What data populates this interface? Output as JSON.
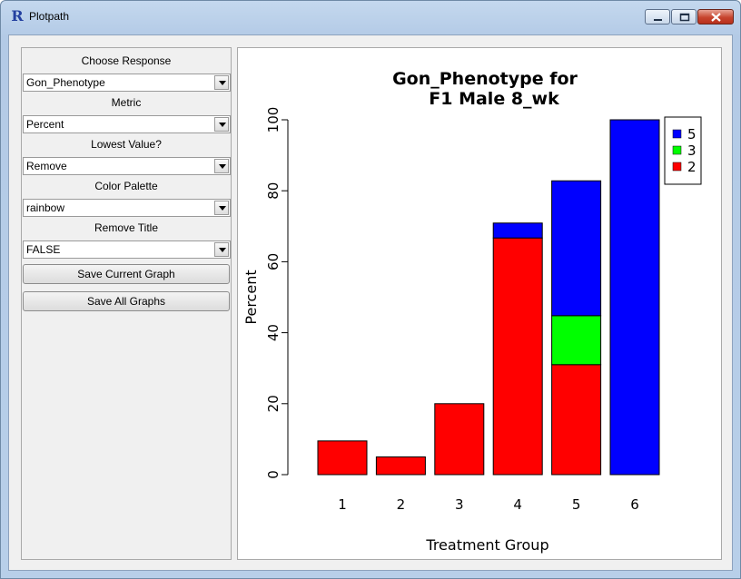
{
  "window": {
    "title": "Plotpath",
    "icon": "R"
  },
  "panel": {
    "controls": [
      {
        "label": "Choose Response",
        "value": "Gon_Phenotype"
      },
      {
        "label": "Metric",
        "value": "Percent"
      },
      {
        "label": "Lowest Value?",
        "value": "Remove"
      },
      {
        "label": "Color Palette",
        "value": "rainbow"
      },
      {
        "label": "Remove Title",
        "value": "FALSE"
      }
    ],
    "save_current": "Save Current Graph",
    "save_all": "Save All Graphs"
  },
  "chart_data": {
    "type": "bar",
    "stacked": true,
    "title_line1": "Gon_Phenotype for",
    "title_line2": "F1 Male 8_wk",
    "xlabel": "Treatment Group",
    "ylabel": "Percent",
    "categories": [
      "1",
      "2",
      "3",
      "4",
      "5",
      "6"
    ],
    "ylim": [
      0,
      100
    ],
    "yticks": [
      0,
      20,
      40,
      60,
      80,
      100
    ],
    "series": [
      {
        "name": "2",
        "color": "#ff0000",
        "values": [
          9.5,
          5,
          20,
          66.7,
          31,
          0
        ]
      },
      {
        "name": "3",
        "color": "#00ff00",
        "values": [
          0,
          0,
          0,
          0,
          13.8,
          0
        ]
      },
      {
        "name": "5",
        "color": "#0000ff",
        "values": [
          0,
          0,
          0,
          4.2,
          38,
          100
        ]
      }
    ],
    "legend_order": [
      "5",
      "3",
      "2"
    ],
    "legend_position": "top-right"
  }
}
